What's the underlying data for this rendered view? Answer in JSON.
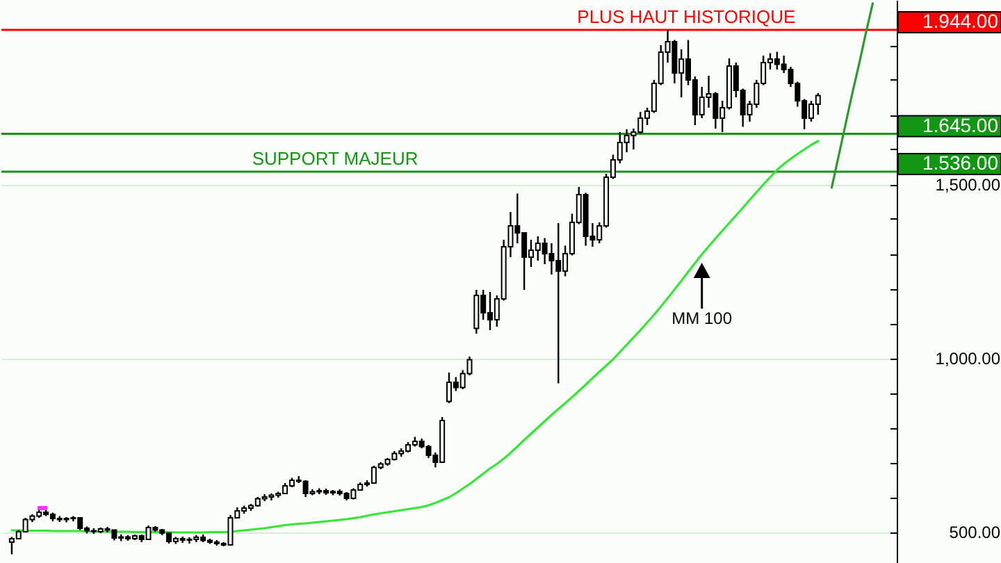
{
  "chart_data": {
    "type": "candlestick",
    "categories": [
      null,
      null,
      null,
      null,
      null,
      null,
      null,
      null,
      null,
      null,
      null,
      null,
      null,
      null,
      null,
      null,
      null,
      null,
      null,
      null,
      null,
      null,
      null,
      null,
      null,
      null,
      null,
      null,
      null,
      null,
      null,
      null,
      null,
      null,
      null,
      null,
      null,
      null,
      null,
      null,
      null,
      null,
      null,
      null,
      null,
      null,
      null,
      null,
      null,
      null,
      null,
      null,
      null,
      null,
      null,
      null,
      null,
      null,
      null,
      null,
      null,
      null,
      null,
      null,
      null,
      null,
      null,
      null,
      null,
      null,
      null,
      null,
      null,
      null,
      null,
      null,
      null,
      null,
      null,
      null,
      null,
      null,
      null,
      null,
      null,
      null,
      null,
      null,
      null,
      null,
      null,
      null,
      null,
      null,
      null,
      null,
      null,
      null,
      null,
      null,
      null,
      null,
      null,
      null,
      null,
      null,
      null,
      null,
      null,
      null,
      null,
      null,
      null,
      null,
      null,
      null,
      null,
      null,
      null,
      null,
      null,
      null,
      null,
      null,
      null,
      null,
      null,
      null,
      null
    ],
    "ohlc": [
      [
        470,
        485,
        435,
        480
      ],
      [
        480,
        505,
        478,
        500
      ],
      [
        500,
        540,
        498,
        535
      ],
      [
        535,
        550,
        528,
        545
      ],
      [
        545,
        562,
        540,
        556
      ],
      [
        556,
        565,
        545,
        550
      ],
      [
        550,
        555,
        530,
        538
      ],
      [
        538,
        545,
        528,
        535
      ],
      [
        535,
        542,
        527,
        538
      ],
      [
        538,
        545,
        530,
        540
      ],
      [
        540,
        542,
        505,
        510
      ],
      [
        510,
        515,
        495,
        503
      ],
      [
        503,
        510,
        494,
        500
      ],
      [
        500,
        512,
        496,
        508
      ],
      [
        508,
        514,
        498,
        505
      ],
      [
        505,
        506,
        475,
        482
      ],
      [
        482,
        492,
        473,
        485
      ],
      [
        485,
        490,
        474,
        480
      ],
      [
        480,
        492,
        476,
        488
      ],
      [
        488,
        492,
        470,
        478
      ],
      [
        478,
        518,
        476,
        512
      ],
      [
        512,
        516,
        500,
        505
      ],
      [
        505,
        508,
        490,
        496
      ],
      [
        496,
        498,
        466,
        472
      ],
      [
        472,
        485,
        465,
        480
      ],
      [
        480,
        486,
        468,
        476
      ],
      [
        476,
        484,
        466,
        478
      ],
      [
        478,
        490,
        470,
        484
      ],
      [
        484,
        492,
        470,
        475
      ],
      [
        475,
        480,
        465,
        470
      ],
      [
        470,
        476,
        460,
        466
      ],
      [
        466,
        470,
        458,
        462
      ],
      [
        462,
        548,
        460,
        540
      ],
      [
        540,
        570,
        538,
        560
      ],
      [
        560,
        575,
        552,
        568
      ],
      [
        568,
        580,
        560,
        575
      ],
      [
        575,
        600,
        572,
        595
      ],
      [
        595,
        608,
        588,
        600
      ],
      [
        600,
        610,
        590,
        605
      ],
      [
        605,
        615,
        598,
        610
      ],
      [
        610,
        640,
        608,
        632
      ],
      [
        632,
        655,
        628,
        648
      ],
      [
        648,
        660,
        640,
        645
      ],
      [
        645,
        648,
        600,
        610
      ],
      [
        610,
        622,
        605,
        615
      ],
      [
        615,
        625,
        608,
        618
      ],
      [
        618,
        624,
        606,
        612
      ],
      [
        612,
        620,
        605,
        616
      ],
      [
        616,
        622,
        604,
        610
      ],
      [
        610,
        614,
        590,
        596
      ],
      [
        596,
        625,
        593,
        620
      ],
      [
        620,
        642,
        618,
        636
      ],
      [
        636,
        648,
        630,
        640
      ],
      [
        640,
        690,
        638,
        685
      ],
      [
        685,
        700,
        680,
        695
      ],
      [
        695,
        712,
        690,
        708
      ],
      [
        708,
        732,
        705,
        725
      ],
      [
        725,
        740,
        716,
        732
      ],
      [
        732,
        758,
        728,
        750
      ],
      [
        750,
        773,
        745,
        760
      ],
      [
        760,
        768,
        740,
        745
      ],
      [
        745,
        750,
        712,
        720
      ],
      [
        720,
        728,
        685,
        700
      ],
      [
        700,
        830,
        698,
        820
      ],
      [
        875,
        958,
        870,
        930
      ],
      [
        930,
        945,
        905,
        915
      ],
      [
        915,
        965,
        910,
        955
      ],
      [
        955,
        1004,
        950,
        995
      ],
      [
        1085,
        1196,
        1070,
        1180
      ],
      [
        1180,
        1196,
        1110,
        1130
      ],
      [
        1130,
        1190,
        1080,
        1110
      ],
      [
        1110,
        1180,
        1090,
        1170
      ],
      [
        1170,
        1340,
        1165,
        1320
      ],
      [
        1320,
        1420,
        1290,
        1380
      ],
      [
        1380,
        1473,
        1330,
        1360
      ],
      [
        1360,
        1362,
        1196,
        1290
      ],
      [
        1290,
        1340,
        1262,
        1310
      ],
      [
        1310,
        1350,
        1280,
        1330
      ],
      [
        1330,
        1345,
        1270,
        1300
      ],
      [
        1300,
        1330,
        1240,
        1280
      ],
      [
        1280,
        1388,
        927,
        1250
      ],
      [
        1250,
        1323,
        1235,
        1300
      ],
      [
        1300,
        1415,
        1295,
        1390
      ],
      [
        1390,
        1492,
        1385,
        1470
      ],
      [
        1470,
        1475,
        1323,
        1350
      ],
      [
        1350,
        1388,
        1320,
        1340
      ],
      [
        1340,
        1390,
        1330,
        1380
      ],
      [
        1380,
        1530,
        1375,
        1520
      ],
      [
        1520,
        1585,
        1515,
        1570
      ],
      [
        1570,
        1650,
        1560,
        1620
      ],
      [
        1620,
        1658,
        1592,
        1640
      ],
      [
        1640,
        1660,
        1600,
        1650
      ],
      [
        1650,
        1708,
        1645,
        1690
      ],
      [
        1690,
        1720,
        1670,
        1710
      ],
      [
        1710,
        1800,
        1705,
        1790
      ],
      [
        1790,
        1900,
        1785,
        1880
      ],
      [
        1880,
        1944,
        1850,
        1910
      ],
      [
        1910,
        1915,
        1790,
        1820
      ],
      [
        1820,
        1888,
        1750,
        1860
      ],
      [
        1860,
        1915,
        1785,
        1800
      ],
      [
        1800,
        1810,
        1670,
        1700
      ],
      [
        1700,
        1780,
        1690,
        1750
      ],
      [
        1750,
        1812,
        1720,
        1760
      ],
      [
        1760,
        1765,
        1660,
        1690
      ],
      [
        1690,
        1740,
        1650,
        1720
      ],
      [
        1720,
        1862,
        1715,
        1840
      ],
      [
        1840,
        1850,
        1750,
        1770
      ],
      [
        1770,
        1775,
        1665,
        1700
      ],
      [
        1700,
        1740,
        1680,
        1730
      ],
      [
        1730,
        1800,
        1720,
        1790
      ],
      [
        1790,
        1870,
        1785,
        1850
      ],
      [
        1850,
        1877,
        1830,
        1860
      ],
      [
        1860,
        1881,
        1830,
        1845
      ],
      [
        1845,
        1870,
        1820,
        1830
      ],
      [
        1830,
        1838,
        1780,
        1790
      ],
      [
        1790,
        1795,
        1723,
        1740
      ],
      [
        1740,
        1745,
        1658,
        1690
      ],
      [
        1690,
        1740,
        1680,
        1730
      ],
      [
        1730,
        1762,
        1700,
        1755
      ],
      null,
      null,
      null,
      null,
      null,
      null,
      null,
      null,
      null,
      null
    ],
    "color": "#000000",
    "series": [
      {
        "name": "MM 100",
        "type": "line",
        "color": "#33e833",
        "values": [
          504,
          504,
          503,
          503,
          503,
          503,
          502,
          502,
          502,
          502,
          502,
          501,
          501,
          501,
          500,
          500,
          500,
          500,
          499,
          499,
          499,
          499,
          499,
          499,
          498,
          498,
          498,
          498,
          498,
          499,
          499,
          499,
          500,
          502,
          504,
          506,
          508,
          510,
          513,
          516,
          519,
          521,
          523,
          524,
          526,
          528,
          530,
          532,
          534,
          536,
          539,
          542,
          546,
          550,
          553,
          556,
          559,
          562,
          565,
          568,
          571,
          576,
          583,
          591,
          599,
          611,
          624,
          637,
          652,
          667,
          682,
          695,
          710,
          727,
          745,
          764,
          782,
          800,
          818,
          836,
          853,
          870,
          887,
          905,
          923,
          942,
          960,
          978,
          996,
          1017,
          1038,
          1059,
          1080,
          1102,
          1124,
          1148,
          1172,
          1197,
          1222,
          1248,
          1273,
          1298,
          1321,
          1344,
          1366,
          1388,
          1410,
          1432,
          1455,
          1477,
          1499,
          1520,
          1541,
          1558,
          1573,
          1587,
          1600,
          1613,
          1624,
          null,
          null,
          null,
          null,
          null,
          null,
          null,
          null,
          null,
          null
        ]
      },
      {
        "type": "line",
        "color": "#2a9a2a",
        "values": [
          null,
          null,
          null,
          null,
          null,
          null,
          null,
          null,
          null,
          null,
          null,
          null,
          null,
          null,
          null,
          null,
          null,
          null,
          null,
          null,
          null,
          null,
          null,
          null,
          null,
          null,
          null,
          null,
          null,
          null,
          null,
          null,
          null,
          null,
          null,
          null,
          null,
          null,
          null,
          null,
          null,
          null,
          null,
          null,
          null,
          null,
          null,
          null,
          null,
          null,
          null,
          null,
          null,
          null,
          null,
          null,
          null,
          null,
          null,
          null,
          null,
          null,
          null,
          null,
          null,
          null,
          null,
          null,
          null,
          null,
          null,
          null,
          null,
          null,
          null,
          null,
          null,
          null,
          null,
          null,
          null,
          null,
          null,
          null,
          null,
          null,
          null,
          null,
          null,
          null,
          null,
          null,
          null,
          null,
          null,
          null,
          null,
          null,
          null,
          null,
          null,
          null,
          null,
          null,
          null,
          null,
          null,
          null,
          null,
          null,
          null,
          null,
          null,
          null,
          null,
          null,
          null,
          null,
          null,
          null,
          1490,
          1580,
          1670,
          1760,
          1845,
          1935,
          2020,
          null,
          null
        ]
      }
    ],
    "ylim": [
      410,
      2030
    ],
    "yticks": [
      {
        "value": 500,
        "label": "500.00"
      },
      {
        "value": 600,
        "label": null
      },
      {
        "value": 700,
        "label": null
      },
      {
        "value": 800,
        "label": null
      },
      {
        "value": 900,
        "label": null
      },
      {
        "value": 1000,
        "label": "1,000.00"
      },
      {
        "value": 1100,
        "label": null
      },
      {
        "value": 1200,
        "label": null
      },
      {
        "value": 1300,
        "label": null
      },
      {
        "value": 1400,
        "label": null
      },
      {
        "value": 1500,
        "label": "1,500.00"
      },
      {
        "value": 1600,
        "label": null
      },
      {
        "value": 1700,
        "label": null
      },
      {
        "value": 1800,
        "label": null
      },
      {
        "value": 1900,
        "label": null
      }
    ],
    "grid": "y",
    "tick_labels": "y",
    "ref_lines": [
      {
        "axis": "y",
        "value": 1944,
        "label": "1.944.00",
        "color": "#ff0000"
      },
      {
        "axis": "y",
        "value": 1645,
        "label": "1.645.00",
        "color": "#139613"
      },
      {
        "axis": "y",
        "value": 1536,
        "label": "1.536.00",
        "color": "#139613"
      }
    ],
    "annotations": [
      {
        "text": "PLUS HAUT HISTORIQUE",
        "y": 1944
      },
      {
        "text": "SUPPORT MAJEUR",
        "y": 1536
      }
    ]
  }
}
